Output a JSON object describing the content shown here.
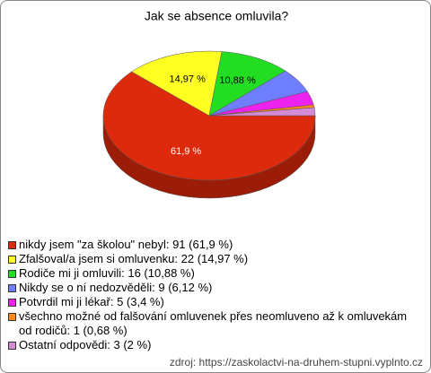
{
  "chart_data": {
    "type": "pie3d",
    "title": "Jak se absence omluvila?",
    "categories": [
      "nikdy jsem \"za školou\" nebyl: 91 (61,9 %)",
      "Zfalšoval/a jsem si omluvenku: 22 (14,97 %)",
      "Rodiče mi ji omluvili: 16 (10,88 %)",
      "Nikdy se o ní nedozvěděli: 9 (6,12 %)",
      "Potvrdil mi ji lékař: 5 (3,4 %)",
      "všechno možné od falšování omluvenek přes neomluveno až k omluvekám od rodičů: 1 (0,68 %)",
      "Ostatní odpovědi: 3 (2 %)"
    ],
    "values": [
      61.9,
      14.97,
      10.88,
      6.12,
      3.4,
      0.68,
      2
    ],
    "value_labels": [
      "61,9 %",
      "14,97 %",
      "10,88 %",
      null,
      null,
      null,
      null
    ],
    "colors": [
      "#dd2a0c",
      "#ffff22",
      "#22dd22",
      "#6e7eff",
      "#ee22ee",
      "#ff8a1c",
      "#d58ad5"
    ],
    "source": "zdroj: https://zaskolactvi-na-druhem-stupni.vyplnto.cz"
  }
}
